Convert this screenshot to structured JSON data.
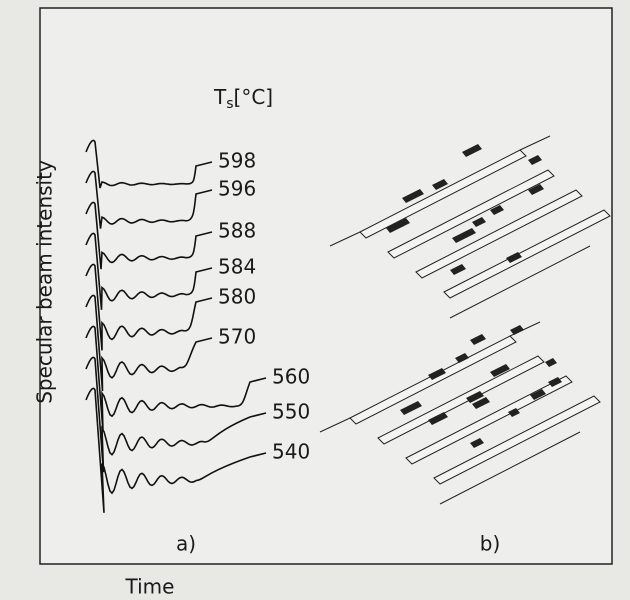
{
  "figure": {
    "y_axis_label": "Specular beam intensity",
    "x_axis_label": "Time",
    "legend_header": {
      "base": "T",
      "sub": "s",
      "unit": "[°C]"
    },
    "curve_labels": [
      598,
      596,
      588,
      584,
      580,
      570,
      560,
      550,
      540
    ],
    "panel_a_label": "a)",
    "panel_b_label": "b)"
  }
}
